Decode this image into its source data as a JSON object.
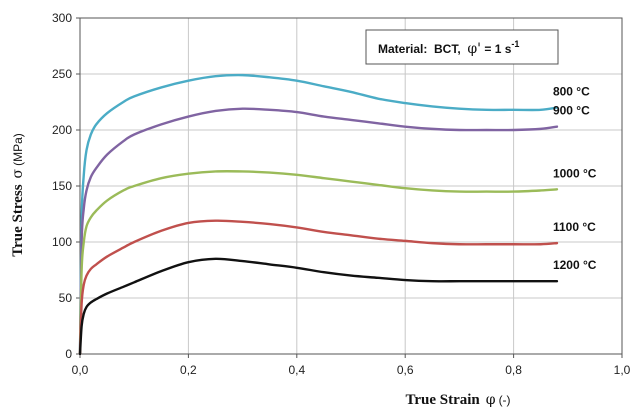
{
  "chart_data": {
    "type": "line",
    "xlabel": "True Strain",
    "xlabel_symbol": "φ",
    "xlabel_unit": "(-)",
    "ylabel": "True Stress",
    "ylabel_symbol": "σ",
    "ylabel_unit": "(MPa)",
    "xlim": [
      0,
      1.0
    ],
    "ylim": [
      0,
      300
    ],
    "xticks": [
      "0,0",
      "0,2",
      "0,4",
      "0,6",
      "0,8",
      "1,0"
    ],
    "yticks": [
      "0",
      "50",
      "100",
      "150",
      "200",
      "250",
      "300"
    ],
    "grid": true,
    "annotation": {
      "prefix": "Material:  BCT,  ",
      "symbol": "φ'",
      "rest": " = 1 s",
      "sup": "-1"
    },
    "series": [
      {
        "name": "800 °C",
        "color": "#4bacc6",
        "x": [
          0,
          0.003,
          0.007,
          0.012,
          0.02,
          0.03,
          0.05,
          0.08,
          0.1,
          0.15,
          0.2,
          0.25,
          0.3,
          0.35,
          0.4,
          0.45,
          0.5,
          0.55,
          0.6,
          0.65,
          0.7,
          0.75,
          0.8,
          0.85,
          0.88
        ],
        "y": [
          0,
          120,
          160,
          182,
          196,
          205,
          215,
          225,
          230,
          238,
          244,
          248,
          249,
          247,
          244,
          239,
          234,
          228,
          224,
          221,
          219,
          218,
          218,
          218,
          220
        ]
      },
      {
        "name": "900 °C",
        "color": "#8064a2",
        "x": [
          0,
          0.003,
          0.007,
          0.012,
          0.02,
          0.03,
          0.05,
          0.08,
          0.1,
          0.15,
          0.2,
          0.25,
          0.3,
          0.35,
          0.4,
          0.45,
          0.5,
          0.55,
          0.6,
          0.65,
          0.7,
          0.75,
          0.8,
          0.85,
          0.88
        ],
        "y": [
          0,
          100,
          130,
          146,
          158,
          166,
          178,
          190,
          196,
          205,
          212,
          217,
          219,
          218,
          216,
          212,
          209,
          206,
          203,
          201,
          200,
          200,
          200,
          201,
          203
        ]
      },
      {
        "name": "1000 °C",
        "color": "#9bbb59",
        "x": [
          0,
          0.003,
          0.007,
          0.012,
          0.02,
          0.03,
          0.05,
          0.08,
          0.1,
          0.15,
          0.2,
          0.25,
          0.3,
          0.35,
          0.4,
          0.45,
          0.5,
          0.55,
          0.6,
          0.65,
          0.7,
          0.75,
          0.8,
          0.85,
          0.88
        ],
        "y": [
          0,
          75,
          100,
          114,
          122,
          128,
          137,
          146,
          150,
          157,
          161,
          163,
          163,
          162,
          160,
          157,
          154,
          151,
          148,
          146,
          145,
          145,
          145,
          146,
          147
        ]
      },
      {
        "name": "1100 °C",
        "color": "#c0504d",
        "x": [
          0,
          0.003,
          0.007,
          0.012,
          0.02,
          0.03,
          0.05,
          0.08,
          0.1,
          0.15,
          0.2,
          0.25,
          0.3,
          0.35,
          0.4,
          0.45,
          0.5,
          0.55,
          0.6,
          0.65,
          0.7,
          0.75,
          0.8,
          0.85,
          0.88
        ],
        "y": [
          0,
          45,
          62,
          70,
          76,
          80,
          87,
          95,
          100,
          110,
          117,
          119,
          118,
          116,
          113,
          109,
          106,
          103,
          101,
          99,
          98,
          98,
          98,
          98,
          99
        ]
      },
      {
        "name": "1200 °C",
        "color": "#111111",
        "x": [
          0,
          0.003,
          0.007,
          0.012,
          0.02,
          0.03,
          0.05,
          0.08,
          0.1,
          0.15,
          0.2,
          0.25,
          0.3,
          0.35,
          0.4,
          0.45,
          0.5,
          0.55,
          0.6,
          0.65,
          0.7,
          0.75,
          0.8,
          0.85,
          0.88
        ],
        "y": [
          0,
          25,
          36,
          42,
          46,
          49,
          54,
          60,
          64,
          74,
          82,
          85,
          83,
          80,
          77,
          73,
          70,
          68,
          66,
          65,
          65,
          65,
          65,
          65,
          65
        ]
      }
    ]
  }
}
